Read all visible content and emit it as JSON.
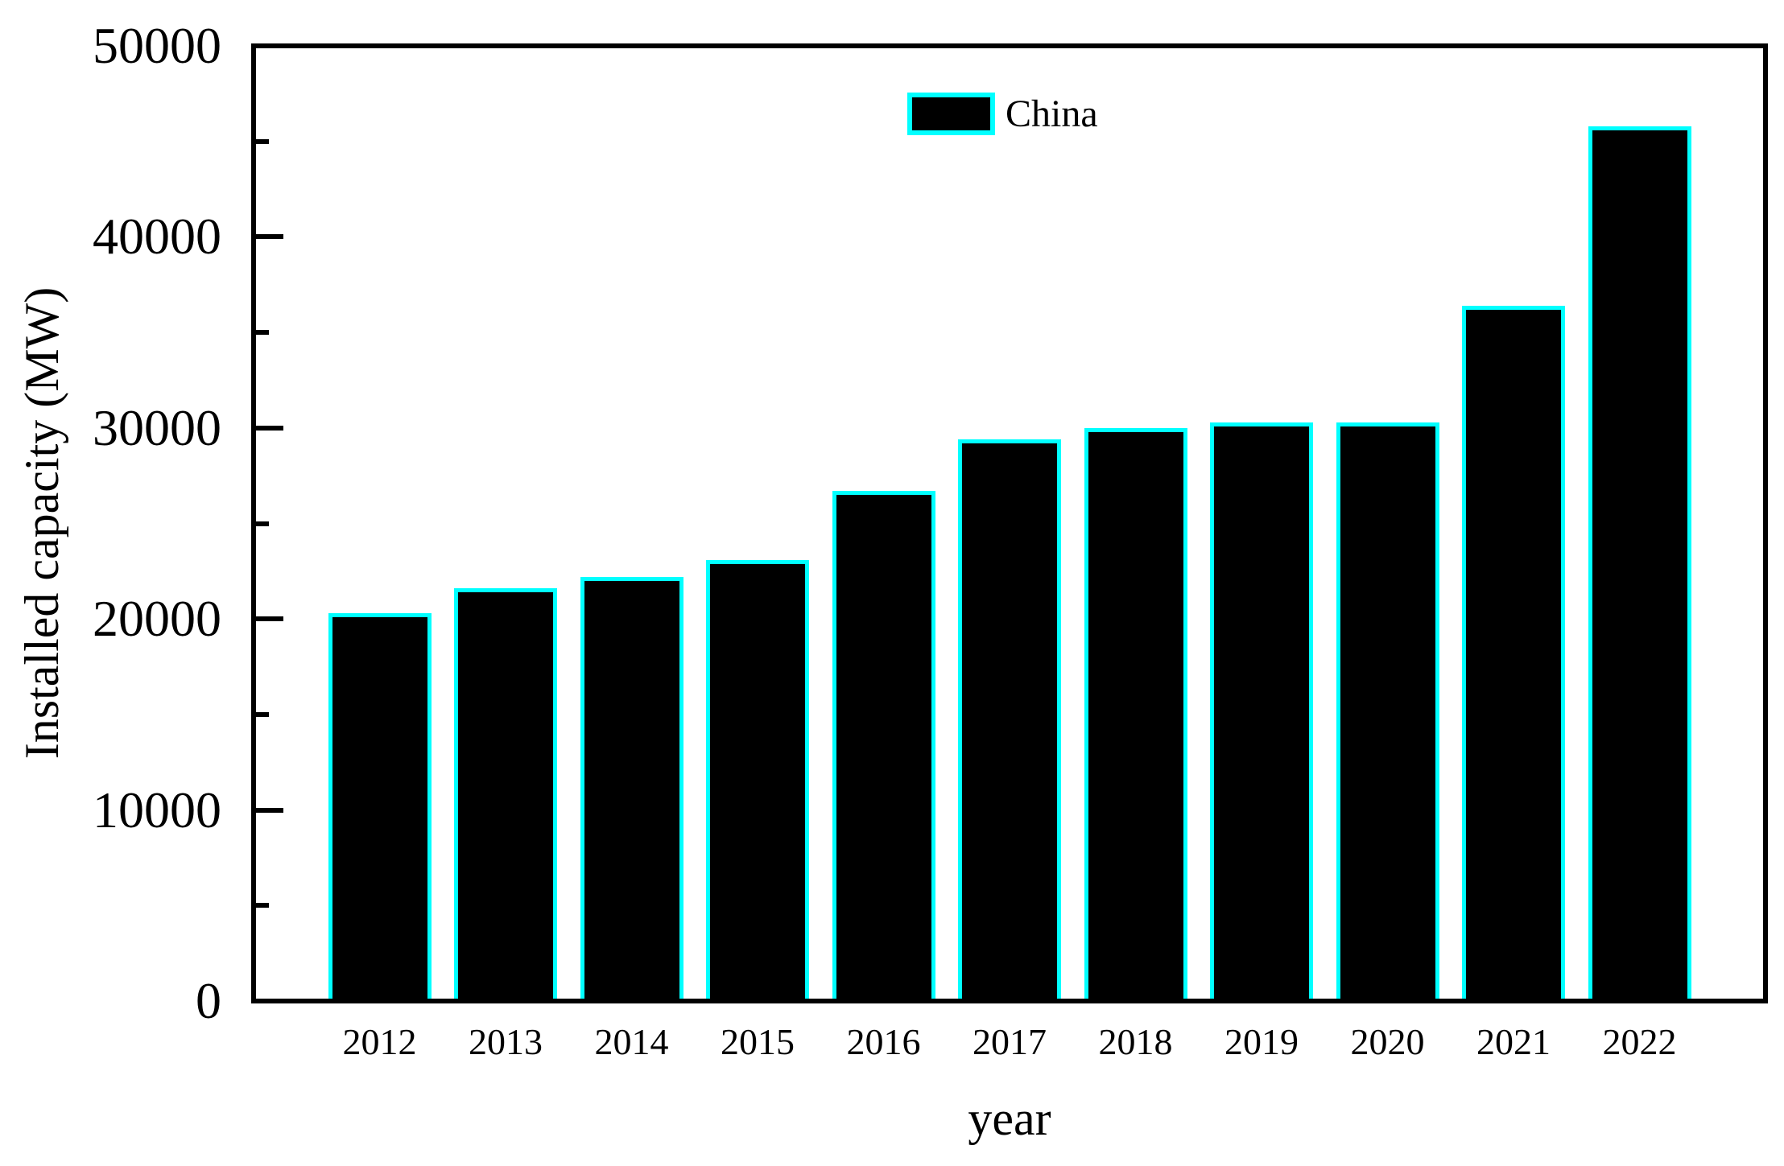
{
  "chart_data": {
    "type": "bar",
    "title": "",
    "xlabel": "year",
    "ylabel": "Installed capacity (MW)",
    "categories": [
      "2012",
      "2013",
      "2014",
      "2015",
      "2016",
      "2017",
      "2018",
      "2019",
      "2020",
      "2021",
      "2022"
    ],
    "series": [
      {
        "name": "China",
        "values": [
          20300,
          21600,
          22200,
          23100,
          26700,
          29400,
          30000,
          30300,
          30300,
          36400,
          45800
        ]
      }
    ],
    "ylim": [
      0,
      50000
    ],
    "yticks": [
      0,
      10000,
      20000,
      30000,
      40000,
      50000
    ],
    "ytick_labels": [
      "0",
      "10000",
      "20000",
      "30000",
      "40000",
      "50000"
    ],
    "minor_ytick_step": 5000,
    "grid": false,
    "legend": {
      "label": "China",
      "position": "top-center"
    },
    "colors": {
      "bar_fill": "#000000",
      "bar_edge": "#00ffff",
      "axis": "#000000",
      "text": "#000000",
      "background": "#ffffff"
    }
  }
}
